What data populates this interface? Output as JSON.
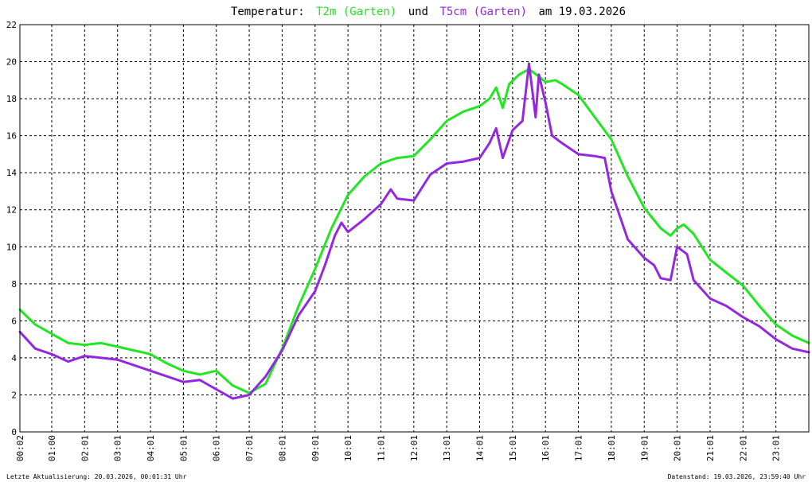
{
  "title": {
    "prefix": "Temperatur:",
    "series1": "T2m (Garten)",
    "mid": "und",
    "series2": "T5cm (Garten)",
    "suffix": "am 19.03.2026"
  },
  "footer": {
    "left": "Letzte Aktualisierung: 20.03.2026, 00:01:31 Uhr",
    "right": "Datenstand: 19.03.2026, 23:59:40 Uhr"
  },
  "colors": {
    "t2m": "#22e622",
    "t5cm": "#9428e0",
    "grid": "#000000",
    "background": "#ffffff"
  },
  "chart_data": {
    "type": "line",
    "title": "Temperatur: T2m (Garten) und T5cm (Garten) am 19.03.2026",
    "xlabel": "",
    "ylabel": "",
    "xlim": [
      0.033,
      24
    ],
    "ylim": [
      0,
      22
    ],
    "grid": true,
    "x_ticks": [
      "00:02",
      "01:00",
      "02:01",
      "03:01",
      "04:01",
      "05:01",
      "06:01",
      "07:01",
      "08:01",
      "09:01",
      "10:01",
      "11:01",
      "12:01",
      "13:01",
      "14:01",
      "15:01",
      "16:01",
      "17:01",
      "18:01",
      "19:01",
      "20:01",
      "21:01",
      "22:01",
      "23:01"
    ],
    "y_ticks": [
      0,
      2,
      4,
      6,
      8,
      10,
      12,
      14,
      16,
      18,
      20,
      22
    ],
    "series": [
      {
        "name": "T2m (Garten)",
        "x": [
          0.033,
          0.5,
          1.0,
          1.5,
          2.0,
          2.5,
          3.0,
          3.5,
          4.0,
          4.5,
          5.0,
          5.5,
          6.0,
          6.5,
          7.0,
          7.5,
          8.0,
          8.5,
          9.0,
          9.5,
          10.0,
          10.5,
          11.0,
          11.5,
          12.0,
          12.5,
          13.0,
          13.5,
          14.0,
          14.3,
          14.5,
          14.7,
          14.9,
          15.2,
          15.5,
          15.8,
          16.0,
          16.3,
          16.5,
          17.0,
          17.5,
          18.0,
          18.5,
          19.0,
          19.5,
          19.8,
          20.0,
          20.2,
          20.5,
          21.0,
          21.5,
          22.0,
          22.5,
          23.0,
          23.5,
          24.0
        ],
        "values": [
          6.6,
          5.8,
          5.3,
          4.8,
          4.7,
          4.8,
          4.6,
          4.4,
          4.2,
          3.7,
          3.3,
          3.1,
          3.3,
          2.5,
          2.1,
          2.6,
          4.5,
          6.8,
          8.8,
          11.0,
          12.8,
          13.8,
          14.5,
          14.8,
          14.9,
          15.8,
          16.8,
          17.3,
          17.6,
          18.0,
          18.6,
          17.5,
          18.8,
          19.3,
          19.6,
          19.2,
          18.9,
          19.0,
          18.8,
          18.2,
          17.0,
          15.8,
          13.8,
          12.1,
          11.0,
          10.6,
          11.0,
          11.2,
          10.7,
          9.3,
          8.6,
          7.9,
          6.8,
          5.8,
          5.2,
          4.8
        ]
      },
      {
        "name": "T5cm (Garten)",
        "x": [
          0.033,
          0.5,
          1.0,
          1.5,
          2.0,
          2.5,
          3.0,
          3.5,
          4.0,
          4.5,
          5.0,
          5.5,
          6.0,
          6.5,
          7.0,
          7.5,
          8.0,
          8.5,
          9.0,
          9.3,
          9.6,
          9.8,
          10.0,
          10.5,
          11.0,
          11.3,
          11.5,
          12.0,
          12.5,
          13.0,
          13.5,
          14.0,
          14.3,
          14.5,
          14.7,
          15.0,
          15.3,
          15.5,
          15.7,
          15.8,
          16.0,
          16.2,
          16.5,
          17.0,
          17.5,
          17.8,
          18.0,
          18.5,
          19.0,
          19.3,
          19.5,
          19.8,
          20.0,
          20.3,
          20.5,
          21.0,
          21.5,
          22.0,
          22.5,
          23.0,
          23.5,
          24.0
        ],
        "values": [
          5.4,
          4.5,
          4.2,
          3.8,
          4.1,
          4.0,
          3.9,
          3.6,
          3.3,
          3.0,
          2.7,
          2.8,
          2.3,
          1.8,
          2.0,
          3.0,
          4.4,
          6.3,
          7.6,
          9.0,
          10.6,
          11.3,
          10.8,
          11.5,
          12.3,
          13.1,
          12.6,
          12.5,
          13.9,
          14.5,
          14.6,
          14.8,
          15.6,
          16.4,
          14.8,
          16.3,
          16.8,
          19.9,
          17.0,
          19.3,
          17.8,
          16.0,
          15.6,
          15.0,
          14.9,
          14.8,
          13.0,
          10.4,
          9.4,
          9.0,
          8.3,
          8.2,
          10.0,
          9.6,
          8.2,
          7.2,
          6.8,
          6.2,
          5.7,
          5.0,
          4.5,
          4.3
        ]
      }
    ]
  }
}
